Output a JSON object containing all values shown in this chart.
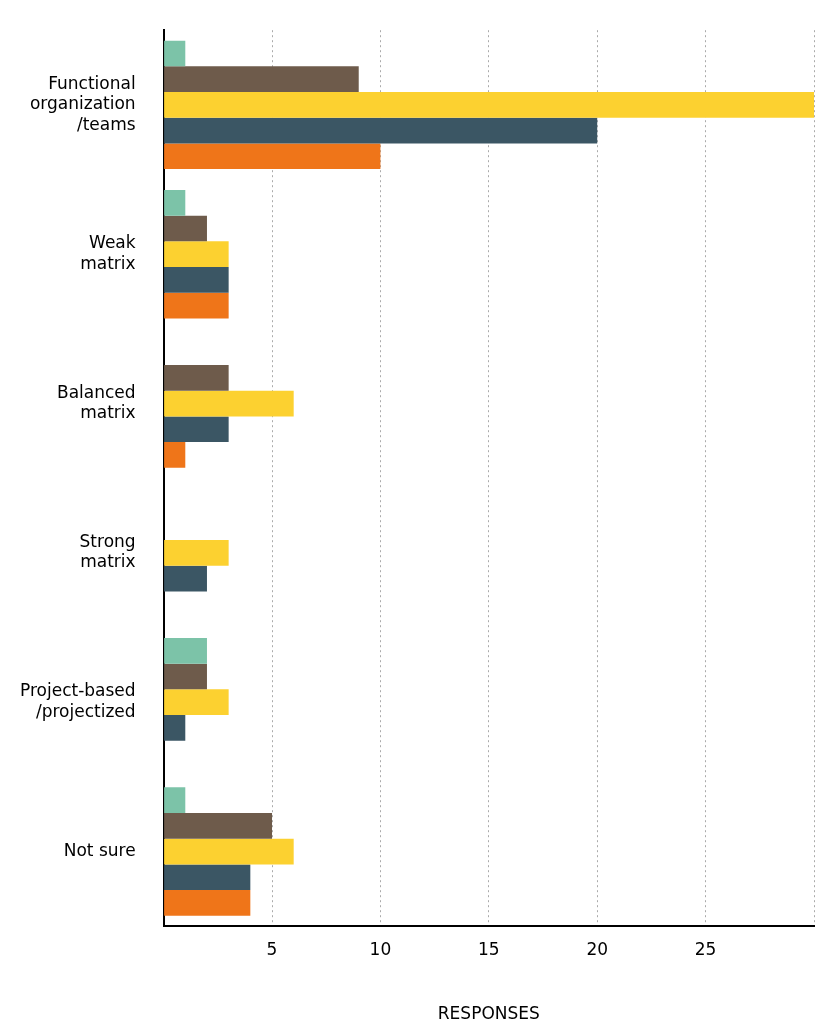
{
  "chart_data": {
    "type": "bar",
    "orientation": "horizontal",
    "xlabel": "RESPONSES",
    "categories": [
      "Functional\norganization\n/teams",
      "Weak\nmatrix",
      "Balanced\nmatrix",
      "Strong\nmatrix",
      "Project-based\n/projectized",
      "Not sure"
    ],
    "series": [
      {
        "color": "#7cc3a8",
        "values": [
          1,
          1,
          0,
          0,
          2,
          1
        ]
      },
      {
        "color": "#6e5b4b",
        "values": [
          9,
          2,
          3,
          0,
          2,
          5
        ]
      },
      {
        "color": "#fcd130",
        "values": [
          30,
          3,
          6,
          3,
          3,
          6
        ]
      },
      {
        "color": "#3b5664",
        "values": [
          20,
          3,
          3,
          2,
          1,
          4
        ]
      },
      {
        "color": "#ef7519",
        "values": [
          10,
          3,
          1,
          0,
          0,
          4
        ]
      }
    ],
    "xlim": [
      0,
      30
    ],
    "xticks": [
      {
        "value": 0,
        "label": null
      },
      5,
      10,
      15,
      20,
      25,
      {
        "value": 30,
        "label": null
      }
    ],
    "grid": "x",
    "legend": false
  }
}
